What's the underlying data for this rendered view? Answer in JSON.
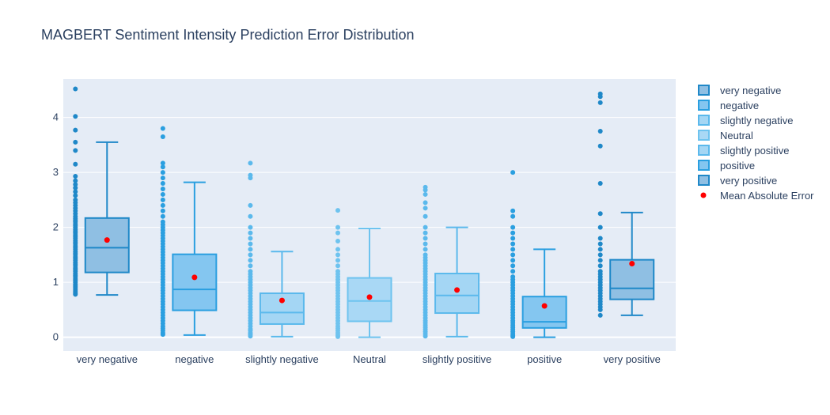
{
  "chart_data": {
    "type": "box",
    "title": "MAGBERT Sentiment Intensity Prediction Error Distribution",
    "xlabel": "",
    "ylabel": "",
    "ylim": [
      -0.25,
      4.7
    ],
    "yticks": [
      0,
      1,
      2,
      3,
      4
    ],
    "grid": true,
    "legend_position": "right",
    "categories": [
      "very negative",
      "negative",
      "slightly negative",
      "Neutral",
      "slightly positive",
      "positive",
      "very positive"
    ],
    "series": [
      {
        "name": "very negative",
        "color": "#1f88c8",
        "fill": "#8fbfe3",
        "q1": 1.18,
        "median": 1.63,
        "q3": 2.17,
        "lower_fence": 0.77,
        "upper_fence": 3.55,
        "mean": 1.77,
        "outliers": [
          0.78,
          0.8,
          0.83,
          0.86,
          0.9,
          0.93,
          0.96,
          1.0,
          1.03,
          1.06,
          1.1,
          1.13,
          1.16,
          1.2,
          1.23,
          1.26,
          1.3,
          1.33,
          1.36,
          1.4,
          1.43,
          1.46,
          1.5,
          1.53,
          1.56,
          1.6,
          1.63,
          1.66,
          1.7,
          1.73,
          1.76,
          1.8,
          1.83,
          1.86,
          1.9,
          1.93,
          1.96,
          2.0,
          2.03,
          2.06,
          2.1,
          2.13,
          2.16,
          2.2,
          2.25,
          2.3,
          2.35,
          2.4,
          2.45,
          2.5,
          2.58,
          2.65,
          2.72,
          2.78,
          2.85,
          2.93,
          3.15,
          3.4,
          3.55,
          3.77,
          4.02,
          4.52
        ]
      },
      {
        "name": "negative",
        "color": "#2a9fe0",
        "fill": "#84c6f0",
        "q1": 0.49,
        "median": 0.87,
        "q3": 1.51,
        "lower_fence": 0.04,
        "upper_fence": 2.82,
        "mean": 1.09,
        "outliers": [
          0.05,
          0.08,
          0.12,
          0.16,
          0.2,
          0.25,
          0.3,
          0.35,
          0.4,
          0.45,
          0.5,
          0.55,
          0.6,
          0.65,
          0.7,
          0.75,
          0.8,
          0.85,
          0.9,
          0.95,
          1.0,
          1.05,
          1.1,
          1.15,
          1.2,
          1.25,
          1.3,
          1.35,
          1.4,
          1.45,
          1.5,
          1.55,
          1.6,
          1.65,
          1.7,
          1.75,
          1.8,
          1.85,
          1.9,
          1.95,
          2.0,
          2.05,
          2.1,
          2.2,
          2.3,
          2.4,
          2.5,
          2.6,
          2.7,
          2.8,
          2.9,
          3.0,
          3.1,
          3.17,
          3.65,
          3.8
        ]
      },
      {
        "name": "slightly negative",
        "color": "#5bb9ec",
        "fill": "#a4d6f4",
        "q1": 0.24,
        "median": 0.45,
        "q3": 0.8,
        "lower_fence": 0.01,
        "upper_fence": 1.56,
        "mean": 0.67,
        "outliers": [
          0.02,
          0.05,
          0.08,
          0.12,
          0.15,
          0.2,
          0.25,
          0.3,
          0.35,
          0.4,
          0.45,
          0.5,
          0.55,
          0.6,
          0.65,
          0.7,
          0.75,
          0.8,
          0.85,
          0.9,
          0.95,
          1.0,
          1.05,
          1.1,
          1.15,
          1.2,
          1.3,
          1.4,
          1.5,
          1.6,
          1.7,
          1.8,
          1.9,
          2.0,
          2.2,
          2.4,
          2.9,
          2.95,
          3.17
        ]
      },
      {
        "name": "Neutral",
        "color": "#6ec3ef",
        "fill": "#a9d8f5",
        "q1": 0.29,
        "median": 0.66,
        "q3": 1.08,
        "lower_fence": 0.0,
        "upper_fence": 1.98,
        "mean": 0.73,
        "outliers": [
          0.01,
          0.04,
          0.08,
          0.12,
          0.16,
          0.2,
          0.25,
          0.3,
          0.35,
          0.4,
          0.45,
          0.5,
          0.55,
          0.6,
          0.65,
          0.7,
          0.75,
          0.8,
          0.85,
          0.9,
          0.95,
          1.0,
          1.05,
          1.1,
          1.15,
          1.2,
          1.3,
          1.4,
          1.5,
          1.6,
          1.75,
          1.9,
          2.0,
          2.31
        ]
      },
      {
        "name": "slightly positive",
        "color": "#5bb9ec",
        "fill": "#a4d6f4",
        "q1": 0.44,
        "median": 0.76,
        "q3": 1.16,
        "lower_fence": 0.01,
        "upper_fence": 2.0,
        "mean": 0.86,
        "outliers": [
          0.02,
          0.06,
          0.1,
          0.14,
          0.18,
          0.22,
          0.26,
          0.3,
          0.35,
          0.4,
          0.45,
          0.5,
          0.55,
          0.6,
          0.65,
          0.7,
          0.75,
          0.8,
          0.85,
          0.9,
          0.95,
          1.0,
          1.05,
          1.1,
          1.15,
          1.2,
          1.25,
          1.3,
          1.35,
          1.4,
          1.45,
          1.5,
          1.6,
          1.7,
          1.8,
          1.9,
          2.0,
          2.2,
          2.35,
          2.45,
          2.6,
          2.68,
          2.73
        ]
      },
      {
        "name": "positive",
        "color": "#2a9fe0",
        "fill": "#84c6f0",
        "q1": 0.17,
        "median": 0.28,
        "q3": 0.74,
        "lower_fence": 0.0,
        "upper_fence": 1.6,
        "mean": 0.57,
        "outliers": [
          0.01,
          0.03,
          0.06,
          0.1,
          0.14,
          0.18,
          0.22,
          0.26,
          0.3,
          0.35,
          0.4,
          0.45,
          0.5,
          0.55,
          0.6,
          0.65,
          0.7,
          0.75,
          0.8,
          0.85,
          0.9,
          0.95,
          1.0,
          1.05,
          1.1,
          1.2,
          1.3,
          1.4,
          1.5,
          1.6,
          1.7,
          1.8,
          1.9,
          2.0,
          2.2,
          2.3,
          3.0
        ]
      },
      {
        "name": "very positive",
        "color": "#1f88c8",
        "fill": "#8fbfe3",
        "q1": 0.69,
        "median": 0.89,
        "q3": 1.41,
        "lower_fence": 0.4,
        "upper_fence": 2.27,
        "mean": 1.34,
        "outliers": [
          0.4,
          0.5,
          0.55,
          0.6,
          0.65,
          0.7,
          0.75,
          0.8,
          0.85,
          0.9,
          0.95,
          1.0,
          1.05,
          1.1,
          1.15,
          1.2,
          1.3,
          1.4,
          1.5,
          1.6,
          1.7,
          1.8,
          2.0,
          2.25,
          2.8,
          3.48,
          3.75,
          4.27,
          4.38,
          4.43
        ]
      }
    ],
    "mean_series": {
      "name": "Mean Absolute Error",
      "color": "#ff0000"
    }
  }
}
